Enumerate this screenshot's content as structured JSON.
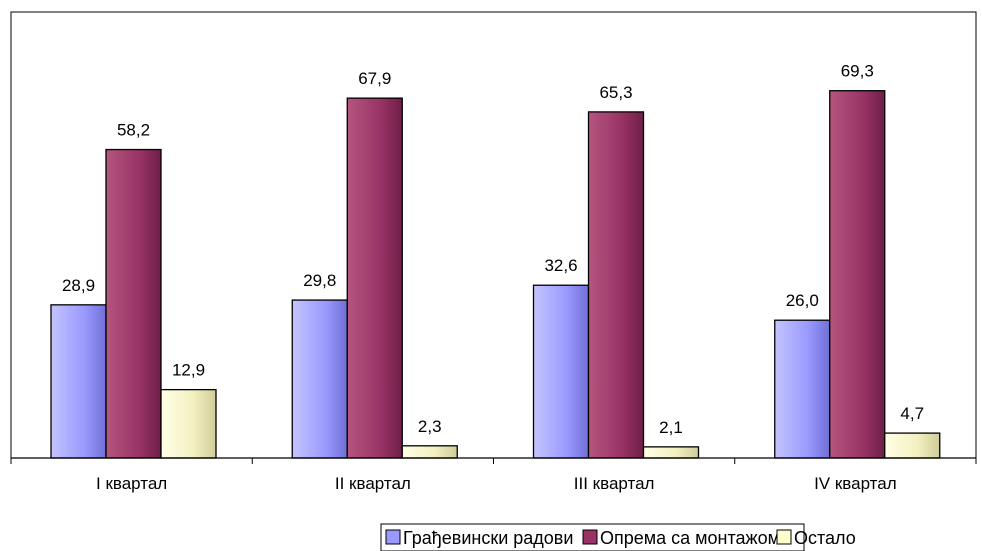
{
  "chart_data": {
    "type": "bar",
    "categories": [
      "I квартал",
      "II квартал",
      "III квартал",
      "IV квартал"
    ],
    "series": [
      {
        "name": "Грађевински радови",
        "values": [
          28.9,
          29.8,
          32.6,
          26.0
        ],
        "labels": [
          "28,9",
          "29,8",
          "32,6",
          "26,0"
        ],
        "color": "#9999ff"
      },
      {
        "name": "Опрема са монтажом",
        "values": [
          58.2,
          67.9,
          65.3,
          69.3
        ],
        "labels": [
          "58,2",
          "67,9",
          "65,3",
          "69,3"
        ],
        "color": "#993366"
      },
      {
        "name": "Остало",
        "values": [
          12.9,
          2.3,
          2.1,
          4.7
        ],
        "labels": [
          "12,9",
          "2,3",
          "2,1",
          "4,7"
        ],
        "color": "#ffffcc"
      }
    ],
    "ylim": [
      0,
      80
    ],
    "grid": false,
    "legend_position": "bottom"
  }
}
